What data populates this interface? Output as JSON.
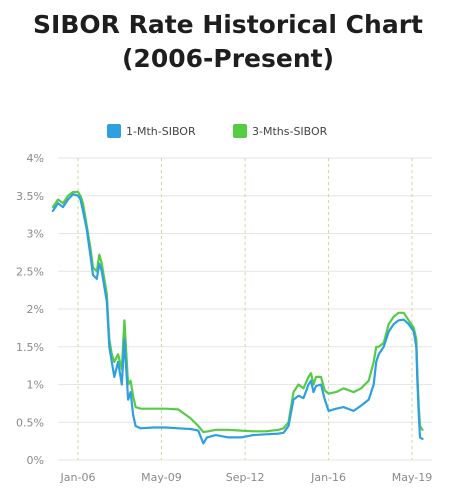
{
  "chart_data": {
    "type": "line",
    "title_line1": "SIBOR Rate Historical Chart",
    "title_line2": "(2006-Present)",
    "xlabel": "",
    "ylabel": "",
    "ylim": [
      0,
      4
    ],
    "xlim": [
      2006.0,
      2019.75
    ],
    "y_ticks": [
      "0%",
      "0.5%",
      "1%",
      "1.5%",
      "2%",
      "2.5%",
      "3%",
      "3.5%",
      "4%"
    ],
    "x_ticks": [
      {
        "label": "Jan-06",
        "x": 2006.0
      },
      {
        "label": "May-09",
        "x": 2009.33
      },
      {
        "label": "Sep-12",
        "x": 2012.67
      },
      {
        "label": "Jan-16",
        "x": 2016.0
      },
      {
        "label": "May-19",
        "x": 2019.33
      }
    ],
    "grid": {
      "horizontal": true,
      "vertical": true
    },
    "legend_position": "top",
    "series": [
      {
        "name": "1-Mth-SIBOR",
        "color": "#2e9fe0",
        "points": [
          [
            2005.0,
            3.3
          ],
          [
            2005.2,
            3.4
          ],
          [
            2005.4,
            3.35
          ],
          [
            2005.6,
            3.45
          ],
          [
            2005.8,
            3.52
          ],
          [
            2006.0,
            3.5
          ],
          [
            2006.1,
            3.45
          ],
          [
            2006.2,
            3.3
          ],
          [
            2006.35,
            3.05
          ],
          [
            2006.5,
            2.7
          ],
          [
            2006.6,
            2.45
          ],
          [
            2006.75,
            2.4
          ],
          [
            2006.85,
            2.6
          ],
          [
            2006.95,
            2.5
          ],
          [
            2007.05,
            2.3
          ],
          [
            2007.15,
            2.1
          ],
          [
            2007.25,
            1.5
          ],
          [
            2007.35,
            1.3
          ],
          [
            2007.45,
            1.1
          ],
          [
            2007.6,
            1.3
          ],
          [
            2007.75,
            1.0
          ],
          [
            2007.85,
            1.6
          ],
          [
            2008.0,
            0.8
          ],
          [
            2008.1,
            0.9
          ],
          [
            2008.2,
            0.6
          ],
          [
            2008.3,
            0.45
          ],
          [
            2008.5,
            0.42
          ],
          [
            2009.0,
            0.43
          ],
          [
            2009.5,
            0.43
          ],
          [
            2010.0,
            0.42
          ],
          [
            2010.5,
            0.41
          ],
          [
            2010.8,
            0.39
          ],
          [
            2011.0,
            0.22
          ],
          [
            2011.15,
            0.3
          ],
          [
            2011.5,
            0.33
          ],
          [
            2012.0,
            0.3
          ],
          [
            2012.5,
            0.3
          ],
          [
            2013.0,
            0.33
          ],
          [
            2013.5,
            0.34
          ],
          [
            2014.0,
            0.35
          ],
          [
            2014.2,
            0.36
          ],
          [
            2014.4,
            0.45
          ],
          [
            2014.6,
            0.8
          ],
          [
            2014.8,
            0.85
          ],
          [
            2015.0,
            0.82
          ],
          [
            2015.2,
            1.0
          ],
          [
            2015.3,
            1.05
          ],
          [
            2015.4,
            0.9
          ],
          [
            2015.5,
            0.98
          ],
          [
            2015.7,
            1.0
          ],
          [
            2015.85,
            0.8
          ],
          [
            2016.0,
            0.65
          ],
          [
            2016.3,
            0.68
          ],
          [
            2016.6,
            0.7
          ],
          [
            2017.0,
            0.65
          ],
          [
            2017.3,
            0.72
          ],
          [
            2017.6,
            0.8
          ],
          [
            2017.8,
            1.0
          ],
          [
            2017.9,
            1.3
          ],
          [
            2018.0,
            1.4
          ],
          [
            2018.2,
            1.5
          ],
          [
            2018.4,
            1.7
          ],
          [
            2018.6,
            1.8
          ],
          [
            2018.8,
            1.85
          ],
          [
            2019.0,
            1.86
          ],
          [
            2019.2,
            1.8
          ],
          [
            2019.4,
            1.7
          ],
          [
            2019.5,
            1.5
          ],
          [
            2019.55,
            1.0
          ],
          [
            2019.6,
            0.6
          ],
          [
            2019.65,
            0.3
          ],
          [
            2019.75,
            0.28
          ]
        ]
      },
      {
        "name": "3-Mths-SIBOR",
        "color": "#55cc44",
        "points": [
          [
            2005.0,
            3.35
          ],
          [
            2005.2,
            3.45
          ],
          [
            2005.4,
            3.4
          ],
          [
            2005.6,
            3.5
          ],
          [
            2005.8,
            3.55
          ],
          [
            2006.0,
            3.55
          ],
          [
            2006.1,
            3.5
          ],
          [
            2006.2,
            3.4
          ],
          [
            2006.35,
            3.1
          ],
          [
            2006.5,
            2.8
          ],
          [
            2006.6,
            2.55
          ],
          [
            2006.75,
            2.5
          ],
          [
            2006.85,
            2.72
          ],
          [
            2006.95,
            2.6
          ],
          [
            2007.05,
            2.4
          ],
          [
            2007.15,
            2.2
          ],
          [
            2007.25,
            1.6
          ],
          [
            2007.35,
            1.4
          ],
          [
            2007.45,
            1.3
          ],
          [
            2007.6,
            1.4
          ],
          [
            2007.75,
            1.2
          ],
          [
            2007.85,
            1.85
          ],
          [
            2008.0,
            1.0
          ],
          [
            2008.1,
            1.05
          ],
          [
            2008.2,
            0.85
          ],
          [
            2008.3,
            0.7
          ],
          [
            2008.5,
            0.68
          ],
          [
            2009.0,
            0.68
          ],
          [
            2009.5,
            0.68
          ],
          [
            2010.0,
            0.67
          ],
          [
            2010.5,
            0.55
          ],
          [
            2010.8,
            0.45
          ],
          [
            2011.0,
            0.37
          ],
          [
            2011.2,
            0.38
          ],
          [
            2011.5,
            0.4
          ],
          [
            2012.0,
            0.4
          ],
          [
            2012.5,
            0.39
          ],
          [
            2013.0,
            0.38
          ],
          [
            2013.5,
            0.38
          ],
          [
            2014.0,
            0.4
          ],
          [
            2014.2,
            0.42
          ],
          [
            2014.4,
            0.5
          ],
          [
            2014.6,
            0.9
          ],
          [
            2014.8,
            1.0
          ],
          [
            2015.0,
            0.95
          ],
          [
            2015.2,
            1.1
          ],
          [
            2015.3,
            1.15
          ],
          [
            2015.4,
            1.0
          ],
          [
            2015.5,
            1.1
          ],
          [
            2015.7,
            1.1
          ],
          [
            2015.85,
            0.92
          ],
          [
            2016.0,
            0.88
          ],
          [
            2016.3,
            0.9
          ],
          [
            2016.6,
            0.95
          ],
          [
            2017.0,
            0.9
          ],
          [
            2017.3,
            0.95
          ],
          [
            2017.6,
            1.05
          ],
          [
            2017.8,
            1.3
          ],
          [
            2017.9,
            1.5
          ],
          [
            2018.0,
            1.5
          ],
          [
            2018.2,
            1.55
          ],
          [
            2018.4,
            1.8
          ],
          [
            2018.6,
            1.9
          ],
          [
            2018.8,
            1.95
          ],
          [
            2019.0,
            1.95
          ],
          [
            2019.2,
            1.85
          ],
          [
            2019.4,
            1.75
          ],
          [
            2019.5,
            1.6
          ],
          [
            2019.55,
            1.1
          ],
          [
            2019.6,
            0.7
          ],
          [
            2019.65,
            0.45
          ],
          [
            2019.75,
            0.4
          ]
        ]
      }
    ]
  }
}
